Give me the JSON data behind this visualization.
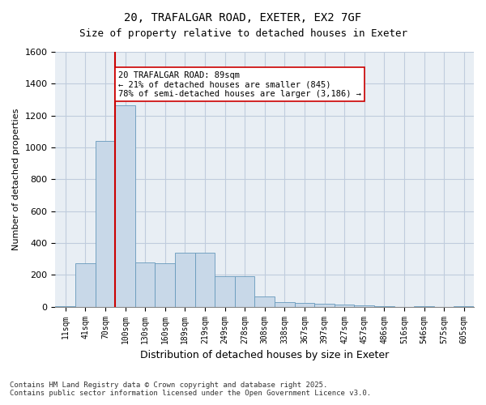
{
  "title1": "20, TRAFALGAR ROAD, EXETER, EX2 7GF",
  "title2": "Size of property relative to detached houses in Exeter",
  "xlabel": "Distribution of detached houses by size in Exeter",
  "ylabel": "Number of detached properties",
  "categories": [
    "11sqm",
    "41sqm",
    "70sqm",
    "100sqm",
    "130sqm",
    "160sqm",
    "189sqm",
    "219sqm",
    "249sqm",
    "278sqm",
    "308sqm",
    "338sqm",
    "367sqm",
    "397sqm",
    "427sqm",
    "457sqm",
    "486sqm",
    "516sqm",
    "546sqm",
    "575sqm",
    "605sqm"
  ],
  "values": [
    5,
    275,
    1040,
    1265,
    280,
    275,
    340,
    340,
    190,
    190,
    65,
    30,
    25,
    20,
    15,
    10,
    5,
    0,
    5,
    0,
    5
  ],
  "bar_color": "#c8d8e8",
  "bar_edge_color": "#6699bb",
  "vline_x": 2,
  "vline_color": "#cc0000",
  "annotation_text": "20 TRAFALGAR ROAD: 89sqm\n← 21% of detached houses are smaller (845)\n78% of semi-detached houses are larger (3,186) →",
  "annotation_box_color": "#ffffff",
  "annotation_box_edge": "#cc0000",
  "ylim": [
    0,
    1600
  ],
  "yticks": [
    0,
    200,
    400,
    600,
    800,
    1000,
    1200,
    1400,
    1600
  ],
  "grid_color": "#c0ccdd",
  "bg_color": "#e8eef4",
  "footer1": "Contains HM Land Registry data © Crown copyright and database right 2025.",
  "footer2": "Contains public sector information licensed under the Open Government Licence v3.0."
}
